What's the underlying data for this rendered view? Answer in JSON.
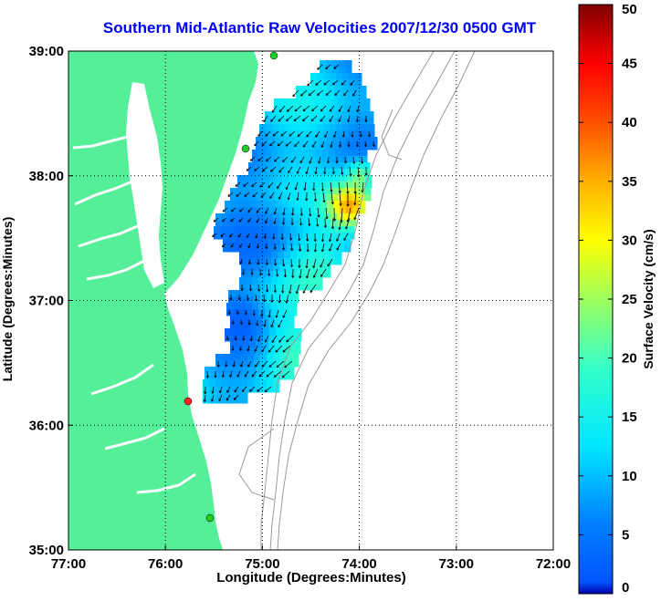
{
  "title": "Southern Mid-Atlantic Raw Velocities 2007/12/30 0500 GMT",
  "xlabel": "Longitude (Degrees:Minutes)",
  "ylabel": "Latitude (Degrees:Minutes)",
  "colorbar": {
    "label": "Surface Velocity (cm/s)",
    "range": [
      0,
      50
    ],
    "ticks": [
      "0",
      "5",
      "10",
      "15",
      "20",
      "25",
      "30",
      "35",
      "40",
      "45",
      "50"
    ],
    "colormap": "jet"
  },
  "map": {
    "x_ticks": [
      "77:00",
      "76:00",
      "75:00",
      "74:00",
      "73:00",
      "72:00"
    ],
    "y_ticks": [
      "39:00",
      "38:00",
      "37:00",
      "36:00",
      "35:00"
    ],
    "lon_range": [
      -77,
      -72
    ],
    "lat_range": [
      35,
      39
    ],
    "grid": true,
    "land_color": "#55ee99",
    "bathymetry_color": "#999999",
    "station_colors": [
      "#22cc22",
      "#ff2222"
    ],
    "arrow_color": "#000000"
  }
}
